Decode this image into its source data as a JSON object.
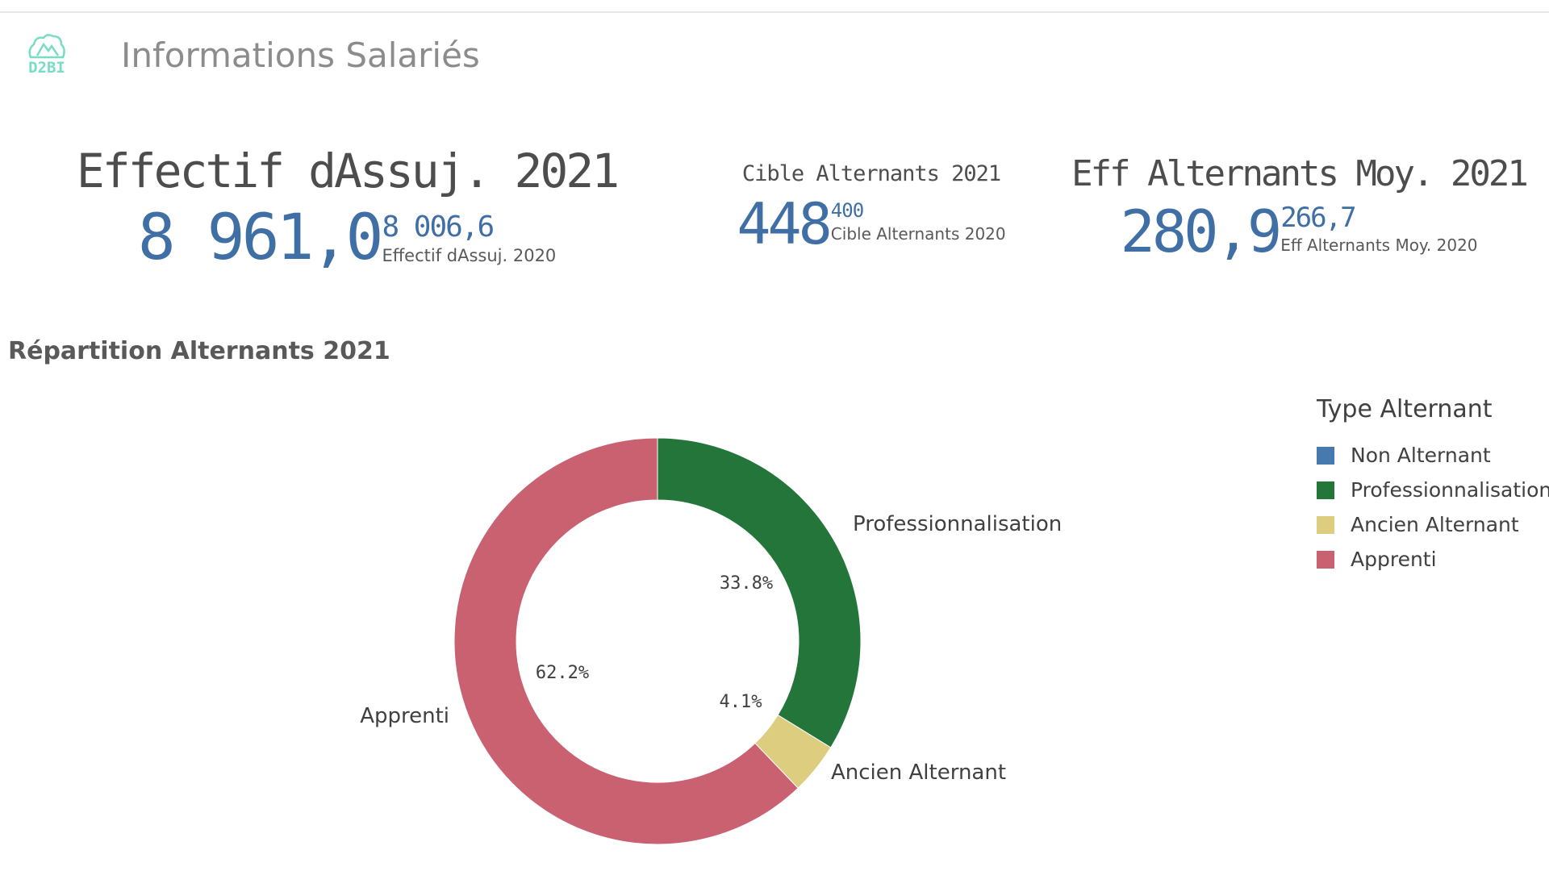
{
  "header": {
    "logo_text": "D2BI",
    "title": "Informations Salariés"
  },
  "kpis": [
    {
      "title": "Effectif dAssuj. 2021",
      "value": "8 961,0",
      "prev_value": "8 006,6",
      "prev_label": "Effectif dAssuj. 2020"
    },
    {
      "title": "Cible Alternants 2021",
      "value": "448",
      "prev_value": "400",
      "prev_label": "Cible Alternants 2020"
    },
    {
      "title": "Eff Alternants Moy. 2021",
      "value": "280,9",
      "prev_value": "266,7",
      "prev_label": "Eff Alternants Moy. 2020"
    }
  ],
  "chart_data": {
    "type": "pie",
    "donut": true,
    "title": "Répartition Alternants 2021",
    "legend_title": "Type Alternant",
    "legend_position": "right",
    "slices": [
      {
        "name": "Professionnalisation",
        "value": 33.8,
        "label": "33.8%",
        "color": "#23753a"
      },
      {
        "name": "Ancien Alternant",
        "value": 4.1,
        "label": "4.1%",
        "color": "#dccd7f"
      },
      {
        "name": "Apprenti",
        "value": 62.2,
        "label": "62.2%",
        "color": "#c96171"
      }
    ],
    "legend": [
      {
        "name": "Non Alternant",
        "color": "#4679ad"
      },
      {
        "name": "Professionnalisation",
        "color": "#23753a"
      },
      {
        "name": "Ancien Alternant",
        "color": "#dccd7f"
      },
      {
        "name": "Apprenti",
        "color": "#c96171"
      }
    ]
  }
}
